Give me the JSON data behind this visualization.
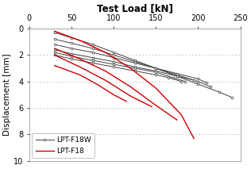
{
  "xlabel": "Test Load [kN]",
  "ylabel": "Displacement [mm]",
  "xlim": [
    0,
    250
  ],
  "ylim": [
    10,
    0
  ],
  "xticks": [
    0,
    50,
    100,
    150,
    200,
    250
  ],
  "yticks": [
    0,
    2,
    4,
    6,
    8,
    10
  ],
  "lpt_f18w_lines": [
    {
      "x": [
        30,
        50,
        75,
        100,
        125,
        150,
        175,
        200,
        225,
        240
      ],
      "y": [
        0.3,
        0.7,
        1.2,
        1.8,
        2.4,
        3.0,
        3.6,
        4.2,
        4.8,
        5.2
      ]
    },
    {
      "x": [
        30,
        50,
        75,
        100,
        125,
        150,
        175,
        200,
        215
      ],
      "y": [
        0.8,
        1.1,
        1.5,
        2.0,
        2.5,
        3.0,
        3.5,
        4.0,
        4.4
      ]
    },
    {
      "x": [
        30,
        50,
        75,
        100,
        125,
        150,
        175,
        200,
        210
      ],
      "y": [
        1.2,
        1.5,
        1.8,
        2.2,
        2.6,
        3.0,
        3.4,
        3.8,
        4.1
      ]
    },
    {
      "x": [
        30,
        50,
        75,
        100,
        125,
        150,
        175,
        195
      ],
      "y": [
        1.6,
        1.9,
        2.2,
        2.5,
        2.9,
        3.2,
        3.6,
        3.9
      ]
    },
    {
      "x": [
        30,
        50,
        75,
        100,
        125,
        150,
        170,
        185
      ],
      "y": [
        1.8,
        2.1,
        2.4,
        2.7,
        3.0,
        3.3,
        3.7,
        4.0
      ]
    },
    {
      "x": [
        30,
        50,
        75,
        100,
        125,
        150,
        165,
        180
      ],
      "y": [
        2.0,
        2.3,
        2.6,
        2.9,
        3.2,
        3.5,
        3.7,
        4.0
      ]
    }
  ],
  "lpt_f18_lines": [
    {
      "x": [
        30,
        60,
        90,
        120,
        150,
        180,
        195
      ],
      "y": [
        0.2,
        0.9,
        1.8,
        3.0,
        4.5,
        6.5,
        8.3
      ]
    },
    {
      "x": [
        30,
        60,
        90,
        120,
        150,
        175
      ],
      "y": [
        1.5,
        2.3,
        3.2,
        4.4,
        5.8,
        6.9
      ]
    },
    {
      "x": [
        30,
        60,
        90,
        120,
        145
      ],
      "y": [
        2.0,
        2.9,
        3.9,
        5.1,
        5.9
      ]
    },
    {
      "x": [
        30,
        60,
        80,
        100,
        115
      ],
      "y": [
        2.8,
        3.5,
        4.2,
        5.0,
        5.5
      ]
    }
  ],
  "lpt_f18w_color": "#404040",
  "lpt_f18_color": "#cc0000",
  "grid_color": "#bbbbbb",
  "bg_color": "#ffffff",
  "legend_fontsize": 6.5,
  "axis_fontsize": 7.5,
  "title_fontsize": 8.5,
  "tick_fontsize": 7
}
